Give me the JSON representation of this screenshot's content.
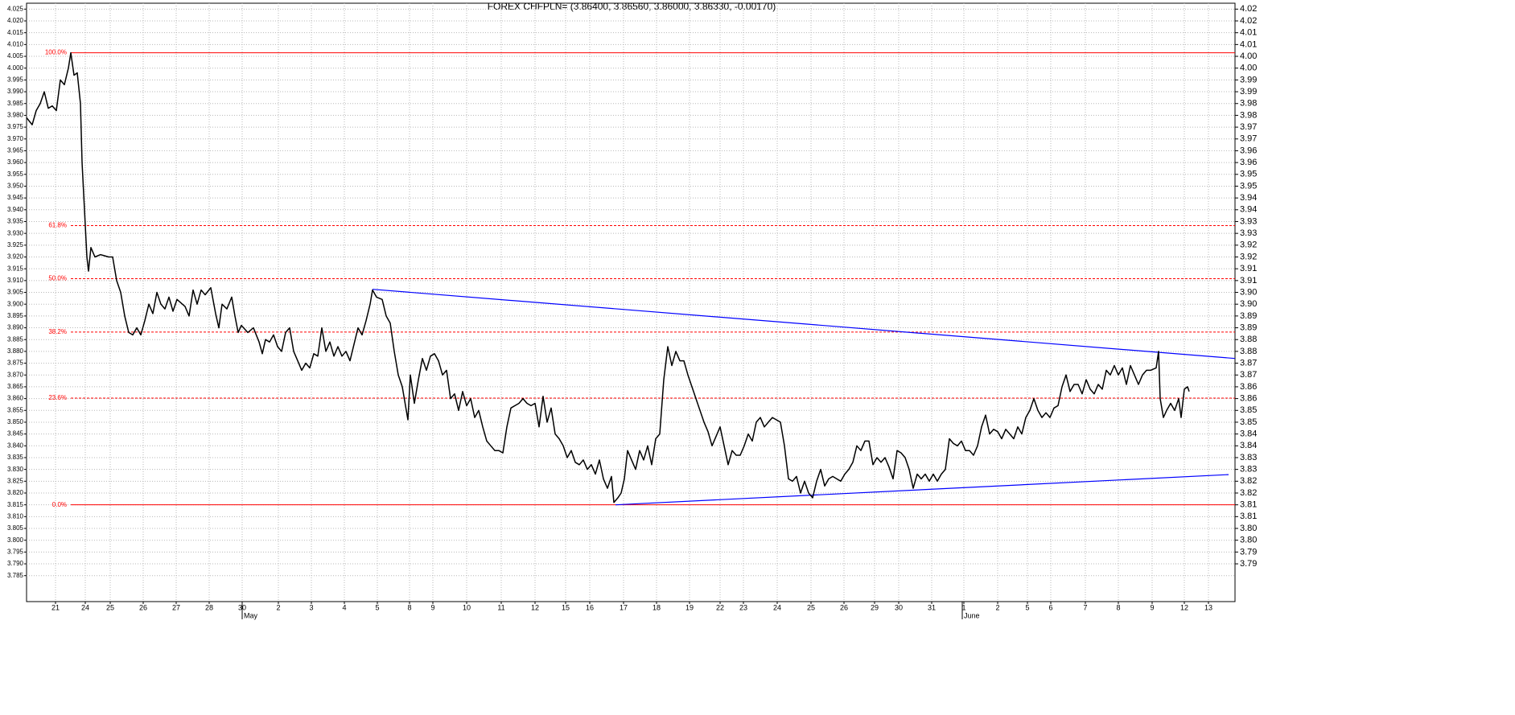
{
  "chart_data": {
    "type": "line",
    "title": "FOREX CHFPLN= (3.86400, 3.86560, 3.86000, 3.86330, -0.00170)",
    "color": "#000000",
    "grid": true,
    "xlim": [
      33,
      1535
    ],
    "ylim": [
      3.774,
      4.0275
    ],
    "y2lim": [
      3.774,
      4.0275
    ],
    "xticks": [
      {
        "value": 69,
        "label": "21"
      },
      {
        "value": 106,
        "label": "24"
      },
      {
        "value": 137,
        "label": "25"
      },
      {
        "value": 178,
        "label": "26"
      },
      {
        "value": 219,
        "label": "27"
      },
      {
        "value": 260,
        "label": "28"
      },
      {
        "value": 301,
        "label": "30"
      },
      {
        "value": 346,
        "label": "2"
      },
      {
        "value": 387,
        "label": "3"
      },
      {
        "value": 428,
        "label": "4"
      },
      {
        "value": 469,
        "label": "5"
      },
      {
        "value": 509,
        "label": "8"
      },
      {
        "value": 538,
        "label": "9"
      },
      {
        "value": 580,
        "label": "10"
      },
      {
        "value": 623,
        "label": "11"
      },
      {
        "value": 665,
        "label": "12"
      },
      {
        "value": 703,
        "label": "15"
      },
      {
        "value": 733,
        "label": "16"
      },
      {
        "value": 775,
        "label": "17"
      },
      {
        "value": 816,
        "label": "18"
      },
      {
        "value": 857,
        "label": "19"
      },
      {
        "value": 895,
        "label": "22"
      },
      {
        "value": 924,
        "label": "23"
      },
      {
        "value": 966,
        "label": "24"
      },
      {
        "value": 1008,
        "label": "25"
      },
      {
        "value": 1049,
        "label": "26"
      },
      {
        "value": 1087,
        "label": "29"
      },
      {
        "value": 1117,
        "label": "30"
      },
      {
        "value": 1158,
        "label": "31"
      },
      {
        "value": 1198,
        "label": "1"
      },
      {
        "value": 1240,
        "label": "2"
      },
      {
        "value": 1277,
        "label": "5"
      },
      {
        "value": 1306,
        "label": "6"
      },
      {
        "value": 1349,
        "label": "7"
      },
      {
        "value": 1390,
        "label": "8"
      },
      {
        "value": 1432,
        "label": "9"
      },
      {
        "value": 1472,
        "label": "12"
      },
      {
        "value": 1502,
        "label": "13"
      }
    ],
    "months": [
      {
        "label": "May",
        "x": 301
      },
      {
        "label": "June",
        "x": 1196
      }
    ],
    "yticks": [
      4.025,
      {
        "value": 4.02,
        "label": "4.020"
      },
      4.015,
      {
        "value": 4.01,
        "label": "4.010"
      },
      4.005,
      {
        "value": 4,
        "label": "4.000"
      },
      3.995,
      {
        "value": 3.99,
        "label": "3.990"
      },
      3.985,
      {
        "value": 3.98,
        "label": "3.980"
      },
      3.975,
      {
        "value": 3.97,
        "label": "3.970"
      },
      3.965,
      {
        "value": 3.96,
        "label": "3.960"
      },
      3.955,
      {
        "value": 3.95,
        "label": "3.950"
      },
      3.945,
      {
        "value": 3.94,
        "label": "3.940"
      },
      3.935,
      {
        "value": 3.93,
        "label": "3.930"
      },
      3.925,
      {
        "value": 3.92,
        "label": "3.920"
      },
      3.915,
      {
        "value": 3.91,
        "label": "3.910"
      },
      3.905,
      {
        "value": 3.9,
        "label": "3.900"
      },
      3.895,
      {
        "value": 3.89,
        "label": "3.890"
      },
      3.885,
      {
        "value": 3.88,
        "label": "3.880"
      },
      3.875,
      {
        "value": 3.87,
        "label": "3.870"
      },
      3.865,
      {
        "value": 3.86,
        "label": "3.860"
      },
      3.855,
      {
        "value": 3.85,
        "label": "3.850"
      },
      3.845,
      {
        "value": 3.84,
        "label": "3.840"
      },
      3.835,
      {
        "value": 3.83,
        "label": "3.830"
      },
      3.825,
      {
        "value": 3.82,
        "label": "3.820"
      },
      3.815,
      {
        "value": 3.81,
        "label": "3.810"
      },
      3.805,
      {
        "value": 3.8,
        "label": "3.800"
      },
      3.795,
      {
        "value": 3.79,
        "label": "3.790"
      },
      3.785
    ],
    "y2ticks": [
      {
        "value": 4.025,
        "label": "4.02"
      },
      4.02,
      {
        "value": 4.015,
        "label": "4.01"
      },
      4.01,
      {
        "value": 4.005,
        "label": "4.00"
      },
      {
        "value": 4,
        "label": "4.00"
      },
      {
        "value": 3.995,
        "label": "3.99"
      },
      3.99,
      {
        "value": 3.985,
        "label": "3.98"
      },
      3.98,
      {
        "value": 3.975,
        "label": "3.97"
      },
      3.97,
      {
        "value": 3.965,
        "label": "3.96"
      },
      3.96,
      {
        "value": 3.955,
        "label": "3.95"
      },
      3.95,
      {
        "value": 3.945,
        "label": "3.94"
      },
      3.94,
      {
        "value": 3.935,
        "label": "3.93"
      },
      3.93,
      {
        "value": 3.925,
        "label": "3.92"
      },
      3.92,
      {
        "value": 3.915,
        "label": "3.91"
      },
      3.91,
      {
        "value": 3.905,
        "label": "3.90"
      },
      {
        "value": 3.9,
        "label": "3.90"
      },
      {
        "value": 3.895,
        "label": "3.89"
      },
      3.89,
      {
        "value": 3.885,
        "label": "3.88"
      },
      3.88,
      {
        "value": 3.875,
        "label": "3.87"
      },
      3.87,
      {
        "value": 3.865,
        "label": "3.86"
      },
      3.86,
      {
        "value": 3.855,
        "label": "3.85"
      },
      3.85,
      {
        "value": 3.845,
        "label": "3.84"
      },
      3.84,
      {
        "value": 3.835,
        "label": "3.83"
      },
      3.83,
      {
        "value": 3.825,
        "label": "3.82"
      },
      3.82,
      {
        "value": 3.815,
        "label": "3.81"
      },
      3.81,
      {
        "value": 3.805,
        "label": "3.80"
      },
      {
        "value": 3.8,
        "label": "3.80"
      },
      {
        "value": 3.795,
        "label": "3.79"
      },
      3.79
    ],
    "levels": [
      {
        "label": "100.0%",
        "value": 4.0065,
        "dashed": false
      },
      {
        "label": "61.8%",
        "value": 3.9333,
        "dashed": true
      },
      {
        "label": "50.0%",
        "value": 3.9108,
        "dashed": true
      },
      {
        "label": "38.2%",
        "value": 3.8882,
        "dashed": true
      },
      {
        "label": "23.6%",
        "value": 3.8602,
        "dashed": true
      },
      {
        "label": "0.0%",
        "value": 3.815,
        "dashed": false
      }
    ],
    "levels_color": "#ff0000",
    "trendlines": [
      {
        "x": [
          463,
          1535
        ],
        "values": [
          3.9063,
          3.877
        ],
        "color": "#0000ff"
      },
      {
        "x": [
          765,
          1527
        ],
        "values": [
          3.815,
          3.8278
        ],
        "color": "#0000ff"
      }
    ],
    "x": [
      33,
      40,
      45,
      50,
      55,
      60,
      65,
      70,
      75,
      80,
      85,
      88,
      92,
      96,
      100,
      102,
      105,
      108,
      110,
      113,
      118,
      125,
      135,
      140,
      145,
      150,
      155,
      160,
      165,
      170,
      175,
      180,
      185,
      190,
      195,
      200,
      205,
      210,
      215,
      220,
      230,
      235,
      240,
      245,
      250,
      255,
      262,
      268,
      272,
      276,
      282,
      288,
      292,
      296,
      300,
      308,
      315,
      322,
      326,
      330,
      335,
      340,
      345,
      350,
      355,
      360,
      365,
      370,
      375,
      380,
      385,
      390,
      395,
      400,
      405,
      410,
      415,
      420,
      425,
      430,
      435,
      440,
      445,
      450,
      455,
      460,
      463,
      468,
      475,
      480,
      485,
      490,
      495,
      500,
      505,
      507,
      510,
      515,
      520,
      525,
      530,
      535,
      540,
      545,
      550,
      555,
      560,
      565,
      570,
      575,
      580,
      585,
      590,
      595,
      600,
      605,
      610,
      615,
      620,
      625,
      630,
      635,
      640,
      645,
      650,
      655,
      660,
      665,
      670,
      675,
      680,
      685,
      690,
      695,
      700,
      705,
      710,
      715,
      720,
      725,
      730,
      735,
      740,
      745,
      750,
      755,
      760,
      763,
      768,
      772,
      776,
      780,
      785,
      790,
      795,
      800,
      805,
      810,
      815,
      820,
      825,
      830,
      835,
      840,
      845,
      850,
      855,
      860,
      865,
      870,
      875,
      880,
      885,
      890,
      895,
      900,
      905,
      910,
      915,
      920,
      925,
      930,
      935,
      940,
      945,
      950,
      955,
      960,
      965,
      970,
      975,
      980,
      985,
      990,
      995,
      1000,
      1005,
      1010,
      1015,
      1020,
      1025,
      1030,
      1035,
      1040,
      1045,
      1050,
      1055,
      1060,
      1065,
      1070,
      1075,
      1080,
      1085,
      1090,
      1095,
      1100,
      1105,
      1110,
      1115,
      1120,
      1125,
      1130,
      1135,
      1140,
      1145,
      1150,
      1155,
      1160,
      1165,
      1170,
      1175,
      1180,
      1185,
      1190,
      1195,
      1200,
      1205,
      1210,
      1215,
      1220,
      1225,
      1230,
      1235,
      1240,
      1245,
      1250,
      1255,
      1260,
      1265,
      1270,
      1275,
      1280,
      1285,
      1290,
      1295,
      1300,
      1305,
      1310,
      1315,
      1320,
      1325,
      1330,
      1335,
      1340,
      1345,
      1350,
      1355,
      1360,
      1365,
      1370,
      1375,
      1380,
      1385,
      1390,
      1395,
      1400,
      1405,
      1410,
      1415,
      1420,
      1425,
      1430,
      1437,
      1440,
      1442,
      1446,
      1450,
      1455,
      1460,
      1465,
      1468,
      1472,
      1476,
      1478
    ],
    "values": [
      3.979,
      3.976,
      3.982,
      3.985,
      3.99,
      3.983,
      3.984,
      3.982,
      3.995,
      3.993,
      4.0,
      4.0065,
      3.997,
      3.998,
      3.985,
      3.96,
      3.94,
      3.92,
      3.914,
      3.924,
      3.92,
      3.921,
      3.92,
      3.92,
      3.91,
      3.905,
      3.895,
      3.888,
      3.887,
      3.89,
      3.887,
      3.893,
      3.9,
      3.896,
      3.905,
      3.9,
      3.898,
      3.903,
      3.897,
      3.902,
      3.899,
      3.895,
      3.906,
      3.9,
      3.906,
      3.904,
      3.907,
      3.896,
      3.89,
      3.9,
      3.898,
      3.903,
      3.895,
      3.888,
      3.891,
      3.888,
      3.89,
      3.884,
      3.879,
      3.885,
      3.884,
      3.887,
      3.882,
      3.88,
      3.888,
      3.89,
      3.88,
      3.876,
      3.872,
      3.875,
      3.873,
      3.879,
      3.878,
      3.89,
      3.88,
      3.884,
      3.878,
      3.882,
      3.878,
      3.88,
      3.876,
      3.883,
      3.89,
      3.887,
      3.893,
      3.9,
      3.906,
      3.903,
      3.902,
      3.895,
      3.892,
      3.88,
      3.87,
      3.865,
      3.855,
      3.851,
      3.87,
      3.858,
      3.868,
      3.877,
      3.872,
      3.878,
      3.879,
      3.876,
      3.87,
      3.872,
      3.86,
      3.862,
      3.855,
      3.863,
      3.857,
      3.86,
      3.852,
      3.855,
      3.848,
      3.842,
      3.84,
      3.838,
      3.838,
      3.837,
      3.848,
      3.856,
      3.857,
      3.858,
      3.86,
      3.858,
      3.857,
      3.858,
      3.848,
      3.861,
      3.85,
      3.856,
      3.845,
      3.843,
      3.84,
      3.835,
      3.838,
      3.833,
      3.832,
      3.834,
      3.83,
      3.832,
      3.828,
      3.834,
      3.826,
      3.822,
      3.827,
      3.816,
      3.818,
      3.82,
      3.826,
      3.838,
      3.834,
      3.83,
      3.838,
      3.834,
      3.84,
      3.832,
      3.843,
      3.845,
      3.868,
      3.882,
      3.874,
      3.88,
      3.876,
      3.876,
      3.87,
      3.865,
      3.86,
      3.855,
      3.85,
      3.846,
      3.84,
      3.844,
      3.848,
      3.84,
      3.832,
      3.838,
      3.836,
      3.836,
      3.84,
      3.845,
      3.842,
      3.85,
      3.852,
      3.848,
      3.85,
      3.852,
      3.851,
      3.85,
      3.84,
      3.826,
      3.825,
      3.827,
      3.82,
      3.825,
      3.82,
      3.818,
      3.825,
      3.83,
      3.823,
      3.826,
      3.827,
      3.826,
      3.825,
      3.828,
      3.83,
      3.833,
      3.84,
      3.838,
      3.842,
      3.842,
      3.832,
      3.835,
      3.833,
      3.835,
      3.831,
      3.826,
      3.838,
      3.837,
      3.835,
      3.83,
      3.822,
      3.828,
      3.826,
      3.828,
      3.825,
      3.828,
      3.825,
      3.828,
      3.83,
      3.843,
      3.841,
      3.84,
      3.842,
      3.838,
      3.838,
      3.836,
      3.84,
      3.848,
      3.853,
      3.845,
      3.847,
      3.846,
      3.843,
      3.847,
      3.845,
      3.843,
      3.848,
      3.845,
      3.852,
      3.855,
      3.86,
      3.855,
      3.852,
      3.854,
      3.852,
      3.856,
      3.857,
      3.865,
      3.87,
      3.863,
      3.866,
      3.866,
      3.862,
      3.868,
      3.864,
      3.862,
      3.866,
      3.864,
      3.872,
      3.87,
      3.874,
      3.87,
      3.873,
      3.866,
      3.874,
      3.87,
      3.866,
      3.87,
      3.872,
      3.872,
      3.873,
      3.88,
      3.86,
      3.852,
      3.855,
      3.858,
      3.855,
      3.86,
      3.852,
      3.864,
      3.865,
      3.863
    ]
  }
}
